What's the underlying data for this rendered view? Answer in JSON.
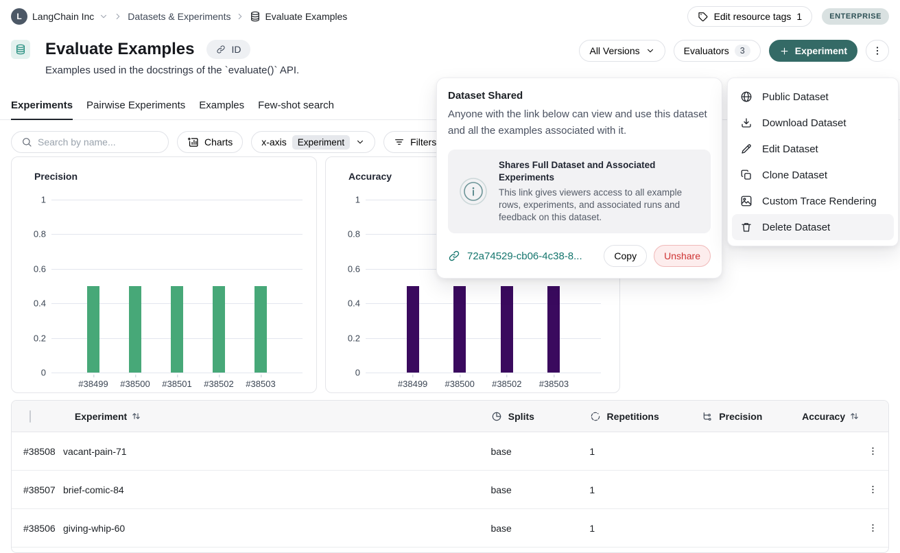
{
  "breadcrumb": {
    "org_initial": "L",
    "org": "LangChain Inc",
    "items": [
      "Datasets & Experiments",
      "Evaluate Examples"
    ]
  },
  "header_actions": {
    "edit_tags_label": "Edit resource tags",
    "edit_tags_count": "1",
    "plan_badge": "ENTERPRISE"
  },
  "title_block": {
    "title": "Evaluate Examples",
    "id_chip": "ID",
    "description": "Examples used in the docstrings of the `evaluate()` API."
  },
  "actions": {
    "versions": "All Versions",
    "evaluators": "Evaluators",
    "evaluators_count": "3",
    "new_experiment": "Experiment"
  },
  "tabs": [
    {
      "label": "Experiments",
      "active": true
    },
    {
      "label": "Pairwise Experiments",
      "active": false
    },
    {
      "label": "Examples",
      "active": false
    },
    {
      "label": "Few-shot search",
      "active": false
    }
  ],
  "toolbar": {
    "search_placeholder": "Search by name...",
    "charts": "Charts",
    "xaxis_label": "x-axis",
    "xaxis_value": "Experiment",
    "filters": "Filters"
  },
  "chart_data": [
    {
      "type": "bar",
      "title": "Precision",
      "categories": [
        "#38499",
        "#38500",
        "#38501",
        "#38502",
        "#38503"
      ],
      "values": [
        0.5,
        0.5,
        0.5,
        0.5,
        0.5
      ],
      "bar_color": "#47a878",
      "ylim": [
        0,
        1
      ],
      "yticks": [
        0,
        0.2,
        0.4,
        0.6,
        0.8,
        1
      ],
      "grid": true,
      "xlabel": "",
      "ylabel": ""
    },
    {
      "type": "bar",
      "title": "Accuracy",
      "categories": [
        "#38499",
        "#38500",
        "#38502",
        "#38503"
      ],
      "values": [
        0.5,
        0.5,
        0.5,
        0.5
      ],
      "bar_color": "#3a0a5e",
      "ylim": [
        0,
        1
      ],
      "yticks": [
        0,
        0.2,
        0.4,
        0.6,
        0.8,
        1
      ],
      "grid": true,
      "xlabel": "",
      "ylabel": ""
    }
  ],
  "share_popover": {
    "title": "Dataset Shared",
    "body": "Anyone with the link below can view and use this dataset and all the examples associated with it.",
    "box_title": "Shares Full Dataset and Associated Experiments",
    "box_body": "This link gives viewers access to all example rows, experiments, and associated runs and feedback on this dataset.",
    "link": "72a74529-cb06-4c38-8...",
    "copy": "Copy",
    "unshare": "Unshare"
  },
  "dataset_menu": {
    "items": [
      {
        "label": "Public Dataset",
        "icon": "globe-icon"
      },
      {
        "label": "Download Dataset",
        "icon": "download-icon"
      },
      {
        "label": "Edit Dataset",
        "icon": "pencil-icon"
      },
      {
        "label": "Clone Dataset",
        "icon": "clone-icon"
      },
      {
        "label": "Custom Trace Rendering",
        "icon": "image-icon"
      },
      {
        "label": "Delete Dataset",
        "icon": "trash-icon",
        "hovered": true
      }
    ]
  },
  "table": {
    "columns": [
      {
        "label": "Experiment",
        "icon": "sort-icon"
      },
      {
        "label": "Splits",
        "icon": "pie-icon"
      },
      {
        "label": "Repetitions",
        "icon": "repeat-icon"
      },
      {
        "label": "Precision",
        "icon": "branch-icon"
      },
      {
        "label": "Accuracy",
        "icon": "sort-icon"
      }
    ],
    "rows": [
      {
        "id": "#38508",
        "name": "vacant-pain-71",
        "splits": "base",
        "repetitions": "1",
        "precision": "",
        "accuracy": ""
      },
      {
        "id": "#38507",
        "name": "brief-comic-84",
        "splits": "base",
        "repetitions": "1",
        "precision": "",
        "accuracy": ""
      },
      {
        "id": "#38506",
        "name": "giving-whip-60",
        "splits": "base",
        "repetitions": "1",
        "precision": "",
        "accuracy": ""
      }
    ]
  },
  "colors": {
    "accent_teal": "#346a66",
    "link_teal": "#14756d",
    "precision_bar": "#47a878",
    "accuracy_bar": "#3a0a5e",
    "unshare_red": "#ce3232",
    "enterprise_badge_bg": "#d9e1e1"
  }
}
